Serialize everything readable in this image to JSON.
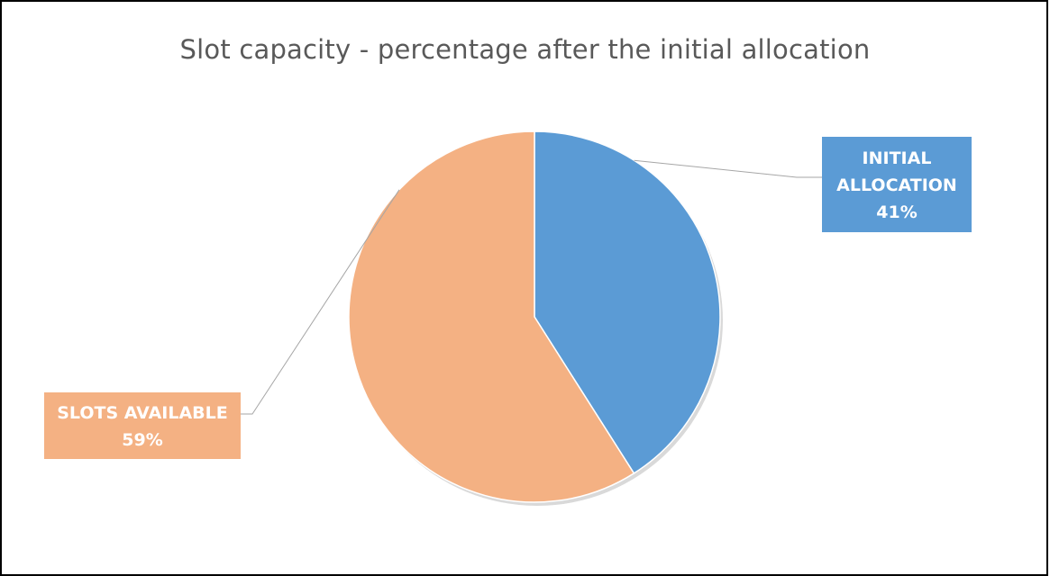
{
  "chart_data": {
    "type": "pie",
    "title": "Slot capacity - percentage after the initial allocation",
    "slices": [
      {
        "label": "INITIAL ALLOCATION",
        "label_lines": [
          "INITIAL",
          "ALLOCATION"
        ],
        "value": 41,
        "value_text": "41%",
        "color": "#5b9bd5"
      },
      {
        "label": "SLOTS AVAILABLE",
        "label_lines": [
          "SLOTS AVAILABLE"
        ],
        "value": 59,
        "value_text": "59%",
        "color": "#f4b183"
      }
    ],
    "legend": "none"
  }
}
